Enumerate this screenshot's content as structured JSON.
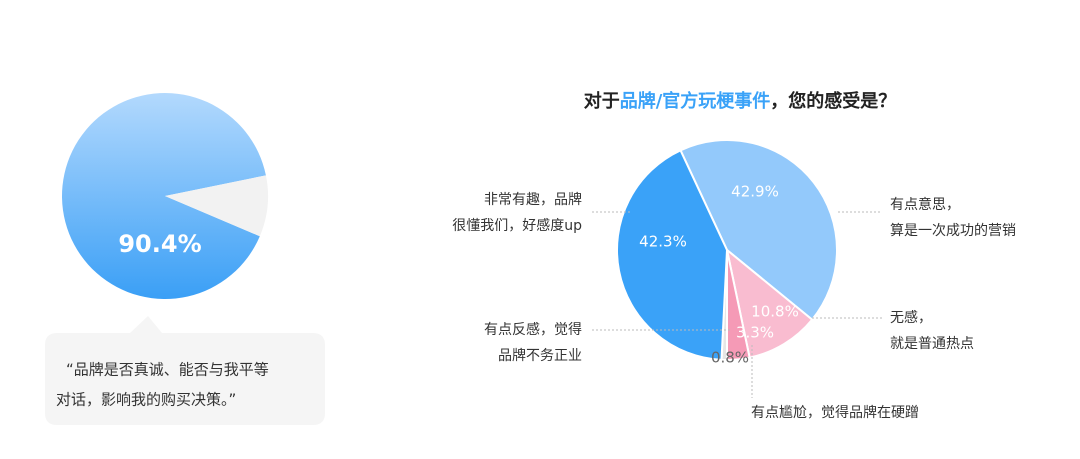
{
  "chart_data": [
    {
      "type": "pie",
      "values": [
        90.4,
        9.6
      ],
      "value_labels": [
        "90.4%",
        null
      ],
      "colors": [
        "#4aa8f8",
        "#f2f2f2"
      ],
      "annotation": [
        "“品牌是否真诚、能否与我平等",
        "对话，影响我的购买决策。”"
      ]
    },
    {
      "type": "pie",
      "title": [
        "对于",
        "品牌/官方玩梗事件",
        "，您的感受是？"
      ],
      "categories": [
        [
          "有点意思，",
          "算是一次成功的营销"
        ],
        [
          "无感，",
          "就是普通热点"
        ],
        [
          "有点反感，觉得",
          "品牌不务正业"
        ],
        [
          "有点尴尬，觉得品牌在硬蹭"
        ],
        [
          "非常有趣，品牌",
          "很懂我们，好感度up"
        ]
      ],
      "values": [
        42.9,
        10.8,
        3.3,
        0.8,
        42.3
      ],
      "value_labels": [
        "42.9%",
        "10.8%",
        "3.3%",
        "0.8%",
        "42.3%"
      ],
      "colors": [
        "#93c9fb",
        "#f9bcd0",
        "#f59ab6",
        "#e6e6e6",
        "#3aa2f8"
      ]
    }
  ]
}
